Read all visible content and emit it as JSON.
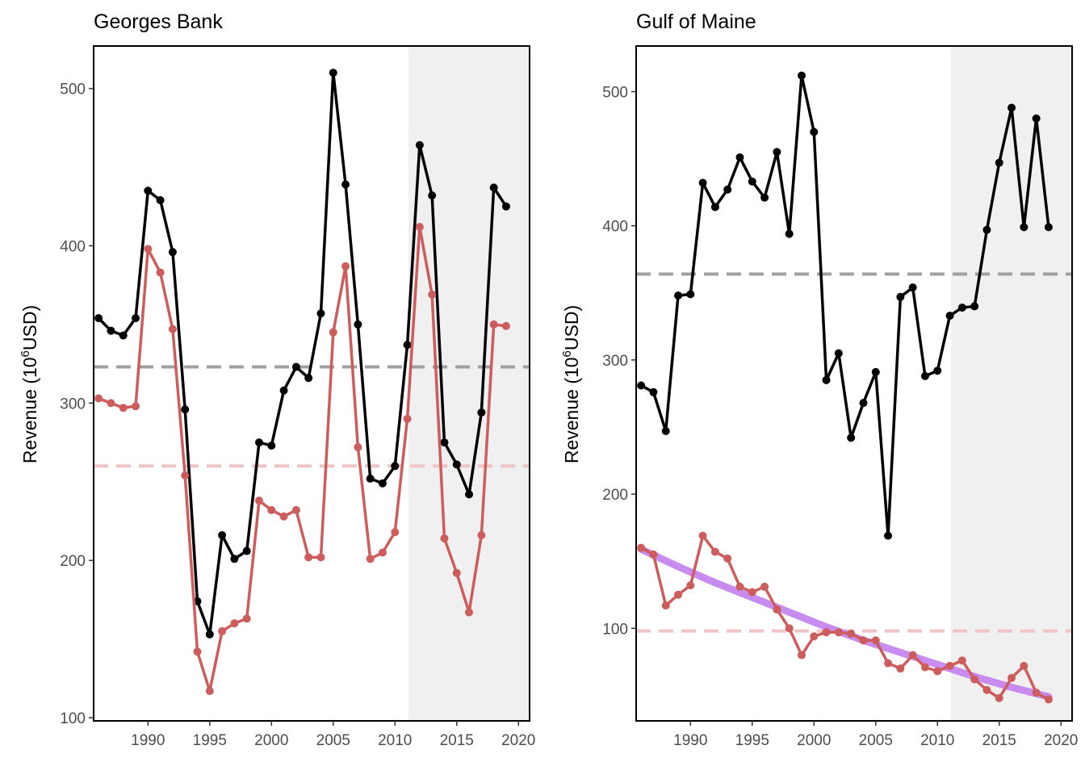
{
  "chart_data": [
    {
      "type": "line",
      "title": "Georges Bank",
      "ylabel_prefix": "Revenue (10",
      "ylabel_sup": "6",
      "ylabel_suffix": "USD)",
      "xlim": [
        1985.6,
        2020.9
      ],
      "ylim": [
        98,
        527
      ],
      "xticks": [
        "1990",
        "1995",
        "2000",
        "2005",
        "2010",
        "2015",
        "2020"
      ],
      "yticks": [
        "100",
        "200",
        "300",
        "400",
        "500"
      ],
      "shaded_from": 2011.1,
      "colors": {
        "total": "#000000",
        "subset": "#cd5c5c",
        "total_mean": "#a0a0a0",
        "subset_mean": "#f0c4c4",
        "shade": "#f0f0f0"
      },
      "series": [
        {
          "key": "total",
          "x": [
            1986,
            1987,
            1988,
            1989,
            1990,
            1991,
            1992,
            1993,
            1994,
            1995,
            1996,
            1997,
            1998,
            1999,
            2000,
            2001,
            2002,
            2003,
            2004,
            2005,
            2006,
            2007,
            2008,
            2009,
            2010,
            2011,
            2012,
            2013,
            2014,
            2015,
            2016,
            2017,
            2018,
            2019
          ],
          "values": [
            354,
            346,
            343,
            354,
            435,
            429,
            396,
            296,
            174,
            153,
            216,
            201,
            206,
            275,
            273,
            308,
            323,
            316,
            357,
            510,
            439,
            350,
            252,
            249,
            260,
            337,
            464,
            432,
            275,
            261,
            242,
            294,
            437,
            425
          ]
        },
        {
          "key": "subset",
          "x": [
            1986,
            1987,
            1988,
            1989,
            1990,
            1991,
            1992,
            1993,
            1994,
            1995,
            1996,
            1997,
            1998,
            1999,
            2000,
            2001,
            2002,
            2003,
            2004,
            2005,
            2006,
            2007,
            2008,
            2009,
            2010,
            2011,
            2012,
            2013,
            2014,
            2015,
            2016,
            2017,
            2018,
            2019
          ],
          "values": [
            303,
            300,
            297,
            298,
            398,
            383,
            347,
            254,
            142,
            117,
            155,
            160,
            163,
            238,
            232,
            228,
            232,
            202,
            202,
            345,
            387,
            272,
            201,
            205,
            218,
            290,
            412,
            369,
            214,
            192,
            167,
            216,
            350,
            349
          ]
        }
      ],
      "reference_lines": [
        {
          "key": "total_mean",
          "y": 323
        },
        {
          "key": "subset_mean",
          "y": 260
        }
      ]
    },
    {
      "type": "line",
      "title": "Gulf of Maine",
      "ylabel_prefix": "Revenue (10",
      "ylabel_sup": "6",
      "ylabel_suffix": "USD)",
      "xlim": [
        1985.6,
        2020.9
      ],
      "ylim": [
        31,
        534
      ],
      "xticks": [
        "1990",
        "1995",
        "2000",
        "2005",
        "2010",
        "2015",
        "2020"
      ],
      "yticks": [
        "100",
        "200",
        "300",
        "400",
        "500"
      ],
      "shaded_from": 2011.1,
      "colors": {
        "total": "#000000",
        "subset": "#cd5c5c",
        "trend": "#c88cf0",
        "total_mean": "#a0a0a0",
        "subset_mean": "#f0c4c4",
        "shade": "#f0f0f0"
      },
      "series": [
        {
          "key": "total",
          "x": [
            1986,
            1987,
            1988,
            1989,
            1990,
            1991,
            1992,
            1993,
            1994,
            1995,
            1996,
            1997,
            1998,
            1999,
            2000,
            2001,
            2002,
            2003,
            2004,
            2005,
            2006,
            2007,
            2008,
            2009,
            2010,
            2011,
            2012,
            2013,
            2014,
            2015,
            2016,
            2017,
            2018,
            2019
          ],
          "values": [
            281,
            276,
            247,
            348,
            349,
            432,
            414,
            427,
            451,
            433,
            421,
            455,
            394,
            512,
            470,
            285,
            305,
            242,
            268,
            291,
            169,
            347,
            354,
            288,
            292,
            333,
            339,
            340,
            397,
            447,
            488,
            399,
            480,
            399
          ]
        },
        {
          "key": "subset",
          "x": [
            1986,
            1987,
            1988,
            1989,
            1990,
            1991,
            1992,
            1993,
            1994,
            1995,
            1996,
            1997,
            1998,
            1999,
            2000,
            2001,
            2002,
            2003,
            2004,
            2005,
            2006,
            2007,
            2008,
            2009,
            2010,
            2011,
            2012,
            2013,
            2014,
            2015,
            2016,
            2017,
            2018,
            2019
          ],
          "values": [
            160,
            155,
            117,
            125,
            132,
            169,
            157,
            152,
            131,
            127,
            131,
            114,
            100,
            80,
            94,
            97,
            97,
            96,
            91,
            91,
            74,
            70,
            80,
            71,
            68,
            72,
            76,
            62,
            54,
            48,
            63,
            72,
            52,
            47
          ]
        }
      ],
      "trend": {
        "key": "trend",
        "x": [
          1986,
          1989,
          1992,
          1995,
          1998,
          2001,
          2004,
          2007,
          2010,
          2013,
          2016,
          2019
        ],
        "values": [
          159,
          146,
          134,
          123,
          112,
          101,
          91,
          82,
          73,
          64,
          56,
          49
        ]
      },
      "reference_lines": [
        {
          "key": "total_mean",
          "y": 364
        },
        {
          "key": "subset_mean",
          "y": 98
        }
      ]
    }
  ]
}
